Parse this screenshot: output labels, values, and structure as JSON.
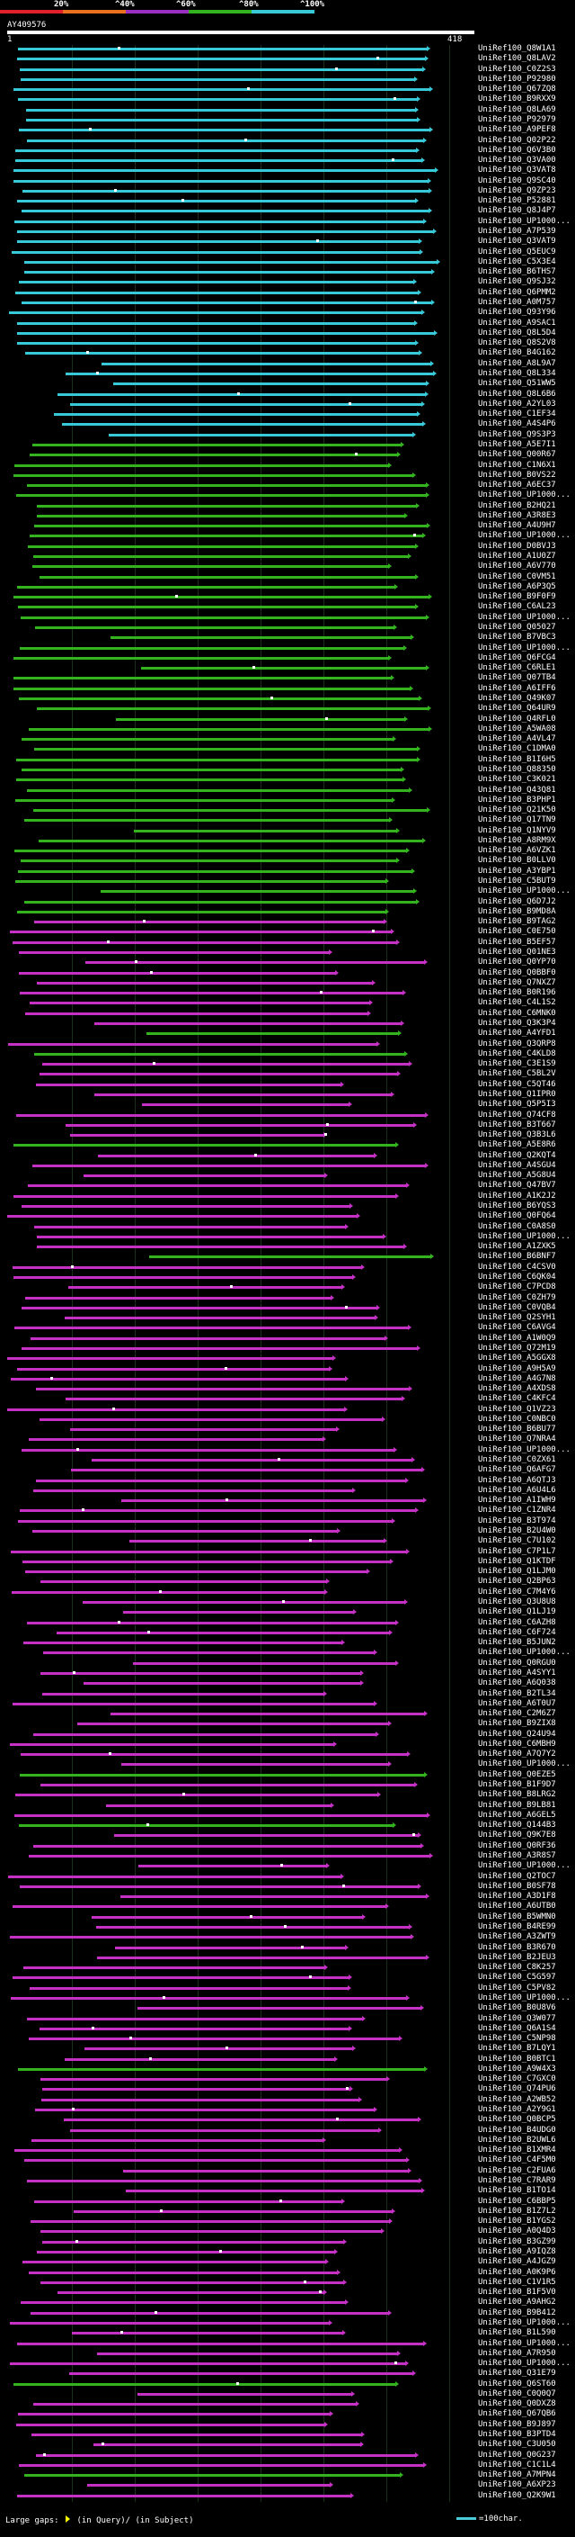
{
  "scale": {
    "labels": [
      "20%",
      "^40%",
      "^60%",
      "^80%",
      "^100%"
    ],
    "colors": [
      "#e0202a",
      "#e8701e",
      "#9b2fc1",
      "#33b41e",
      "#38c9d9"
    ]
  },
  "query": {
    "id": "AY409576",
    "start": "1",
    "end": "418"
  },
  "legend": {
    "text_a": "Large gaps:",
    "text_b": "(in Query)/",
    "text_c": "(in Subject)",
    "scale_text": "=100char."
  },
  "hits": {
    "colors": [
      "#38c9d9",
      "#33b41e",
      "#c431c4"
    ],
    "accessions": [
      "UniRef100_Q8W1A1",
      "UniRef100_Q8LAV2",
      "UniRef100_C0Z2S3",
      "UniRef100_P92980",
      "UniRef100_Q67ZQ8",
      "UniRef100_B9RXX9",
      "UniRef100_Q8LA69",
      "UniRef100_P92979",
      "UniRef100_A9PEF8",
      "UniRef100_Q02P22",
      "UniRef100_Q6V3B0",
      "UniRef100_Q3VA00",
      "UniRef100_Q3VAT8",
      "UniRef100_Q9SC40",
      "UniRef100_Q9ZP23",
      "UniRef100_P52881",
      "UniRef100_Q8J4P7",
      "UniRef100_UP1000...",
      "UniRef100_A7P539",
      "UniRef100_Q3VAT9",
      "UniRef100_Q5EUC9",
      "UniRef100_C5X3E4",
      "UniRef100_B6THS7",
      "UniRef100_Q9SJ32",
      "UniRef100_Q6PMM2",
      "UniRef100_A0M757",
      "UniRef100_Q93Y96",
      "UniRef100_A9SAC1",
      "UniRef100_Q8L5D4",
      "UniRef100_Q8S2V8",
      "UniRef100_B4G162",
      "UniRef100_A8L9A7",
      "UniRef100_Q8L334",
      "UniRef100_Q51WW5",
      "UniRef100_Q8L6B6",
      "UniRef100_A2YL03",
      "UniRef100_C1EF34",
      "UniRef100_A4S4P6",
      "UniRef100_Q9S3P3",
      "UniRef100_A5E7I1",
      "UniRef100_Q00R67",
      "UniRef100_C1N6X1",
      "UniRef100_B0VS22",
      "UniRef100_A6EC37",
      "UniRef100_UP1000...",
      "UniRef100_B2HQ21",
      "UniRef100_A3R8E3",
      "UniRef100_A4U9H7",
      "UniRef100_UP1000...",
      "UniRef100_D0BVJ3",
      "UniRef100_A1U0Z7",
      "UniRef100_A6V770",
      "UniRef100_C0VM51",
      "UniRef100_A6P3Q5",
      "UniRef100_B9F0F9",
      "UniRef100_C6AL23",
      "UniRef100_UP1000...",
      "UniRef100_Q05027",
      "UniRef100_B7VBC3",
      "UniRef100_UP1000...",
      "UniRef100_Q6FCG4",
      "UniRef100_C6RLE1",
      "UniRef100_Q07TB4",
      "UniRef100_A6IFF6",
      "UniRef100_Q49K07",
      "UniRef100_Q64UR9",
      "UniRef100_Q4RFL0",
      "UniRef100_A5WA08",
      "UniRef100_A4VL47",
      "UniRef100_C1DMA0",
      "UniRef100_B1I6H5",
      "UniRef100_Q88350",
      "UniRef100_C3K021",
      "UniRef100_Q43Q81",
      "UniRef100_B3PHP1",
      "UniRef100_Q21K50",
      "UniRef100_Q17TN9",
      "UniRef100_Q1NYV9",
      "UniRef100_A8RM9X",
      "UniRef100_A6VZK1",
      "UniRef100_B0LLV0",
      "UniRef100_A3YBP1",
      "UniRef100_C5BUT9",
      "UniRef100_UP1000...",
      "UniRef100_Q6D7J2",
      "UniRef100_B9MD8A",
      "UniRef100_B9TAG2",
      "UniRef100_C0E750",
      "UniRef100_B5EF57",
      "UniRef100_Q01NE3",
      "UniRef100_Q0YP70",
      "UniRef100_Q0BBF0",
      "UniRef100_Q7NXZ7",
      "UniRef100_B0R196",
      "UniRef100_C4L1S2",
      "UniRef100_C6MNK0",
      "UniRef100_Q3K3P4",
      "UniRef100_A4YFD1",
      "UniRef100_Q3QRP8",
      "UniRef100_C4KLD8",
      "UniRef100_C3E1S9",
      "UniRef100_C5BL2V",
      "UniRef100_C5QT46",
      "UniRef100_Q1IPR0",
      "UniRef100_Q5P5I3",
      "UniRef100_Q74CF8",
      "UniRef100_B3T667",
      "UniRef100_Q3B3L6",
      "UniRef100_A5E8R6",
      "UniRef100_Q2KQT4",
      "UniRef100_A4SGU4",
      "UniRef100_A5G8U4",
      "UniRef100_Q47BV7",
      "UniRef100_A1K2J2",
      "UniRef100_B6YQS3",
      "UniRef100_Q0FQ64",
      "UniRef100_C0A8S0",
      "UniRef100_UP1000...",
      "UniRef100_A1ZXK5",
      "UniRef100_B6BNF7",
      "UniRef100_C4CSV0",
      "UniRef100_C6QK04",
      "UniRef100_C7PCD8",
      "UniRef100_C0ZH79",
      "UniRef100_C0VQB4",
      "UniRef100_Q2SYH1",
      "UniRef100_C6AVG4",
      "UniRef100_A1W0Q9",
      "UniRef100_Q72M19",
      "UniRef100_A5GGX8",
      "UniRef100_A9H5A9",
      "UniRef100_A4G7N8",
      "UniRef100_A4XDS8",
      "UniRef100_C4KFC4",
      "UniRef100_Q1VZ23",
      "UniRef100_C0NBC0",
      "UniRef100_B6BU77",
      "UniRef100_Q7NRA4",
      "UniRef100_UP1000...",
      "UniRef100_C0ZX61",
      "UniRef100_Q6AFG7",
      "UniRef100_A6QTJ3",
      "UniRef100_A6U4L6",
      "UniRef100_A1IWH9",
      "UniRef100_C1ZNR4",
      "UniRef100_B3T974",
      "UniRef100_B2U4W0",
      "UniRef100_C7U102",
      "UniRef100_C7P1L7",
      "UniRef100_Q1KTDF",
      "UniRef100_Q1LJM0",
      "UniRef100_Q2BP63",
      "UniRef100_C7M4Y6",
      "UniRef100_Q3U8U8",
      "UniRef100_Q1LJ19",
      "UniRef100_C6AZH8",
      "UniRef100_C6F724",
      "UniRef100_B5JUN2",
      "UniRef100_UP1000...",
      "UniRef100_Q0RGU0",
      "UniRef100_A4SYY1",
      "UniRef100_A6Q038",
      "UniRef100_B2TL34",
      "UniRef100_A6T0U7",
      "UniRef100_C2M6Z7",
      "UniRef100_B9ZIX8",
      "UniRef100_Q24U94",
      "UniRef100_C6MBH9",
      "UniRef100_A7Q7Y2",
      "UniRef100_UP1000...",
      "UniRef100_Q0EZE5",
      "UniRef100_B1F9D7",
      "UniRef100_B8LRG2",
      "UniRef100_B9LB81",
      "UniRef100_A6GEL5",
      "UniRef100_Q144B3",
      "UniRef100_Q9K7E8",
      "UniRef100_Q0RF36",
      "UniRef100_A3R8S7",
      "UniRef100_UP1000...",
      "UniRef100_Q2TOC7",
      "UniRef100_B0SF78",
      "UniRef100_A3D1F8",
      "UniRef100_A6UTB0",
      "UniRef100_B5WMN0",
      "UniRef100_B4RE99",
      "UniRef100_A3ZWT9",
      "UniRef100_B3R670",
      "UniRef100_B2JEU3",
      "UniRef100_C8K257",
      "UniRef100_C5G597",
      "UniRef100_C5PV82",
      "UniRef100_UP1000...",
      "UniRef100_B0U8V6",
      "UniRef100_Q3W077",
      "UniRef100_Q6A1S4",
      "UniRef100_C5NP98",
      "UniRef100_B7LQY1",
      "UniRef100_B0BTC1",
      "UniRef100_A9W4X3",
      "UniRef100_C7GXC0",
      "UniRef100_Q74PU6",
      "UniRef100_A2WB52",
      "UniRef100_A2Y9G1",
      "UniRef100_Q0BCP5",
      "UniRef100_B4UDG0",
      "UniRef100_B2UWL6",
      "UniRef100_B1XMR4",
      "UniRef100_C4F5M0",
      "UniRef100_C2FUA6",
      "UniRef100_C7RAR9",
      "UniRef100_B1TO14",
      "UniRef100_C6BBP5",
      "UniRef100_B1Z7L2",
      "UniRef100_B1YGS2",
      "UniRef100_A0Q4D3",
      "UniRef100_B3GZ99",
      "UniRef100_A9IQZ8",
      "UniRef100_A4JGZ9",
      "UniRef100_A0K9P6",
      "UniRef100_C1V1R5",
      "UniRef100_B1F5V0",
      "UniRef100_A9AHG2",
      "UniRef100_B9B412",
      "UniRef100_UP1000...",
      "UniRef100_B1L590",
      "UniRef100_UP1000...",
      "UniRef100_A7R950",
      "UniRef100_UP1000...",
      "UniRef100_Q31E79",
      "UniRef100_Q6ST60",
      "UniRef100_C0Q0Q7",
      "UniRef100_Q0DXZ8",
      "UniRef100_Q67QB6",
      "UniRef100_B9J897",
      "UniRef100_B3PTD4",
      "UniRef100_C3U050",
      "UniRef100_Q0G237",
      "UniRef100_C1C1L4",
      "UniRef100_A7MPN4",
      "UniRef100_A6XP23",
      "UniRef100_Q2K9W1"
    ]
  }
}
